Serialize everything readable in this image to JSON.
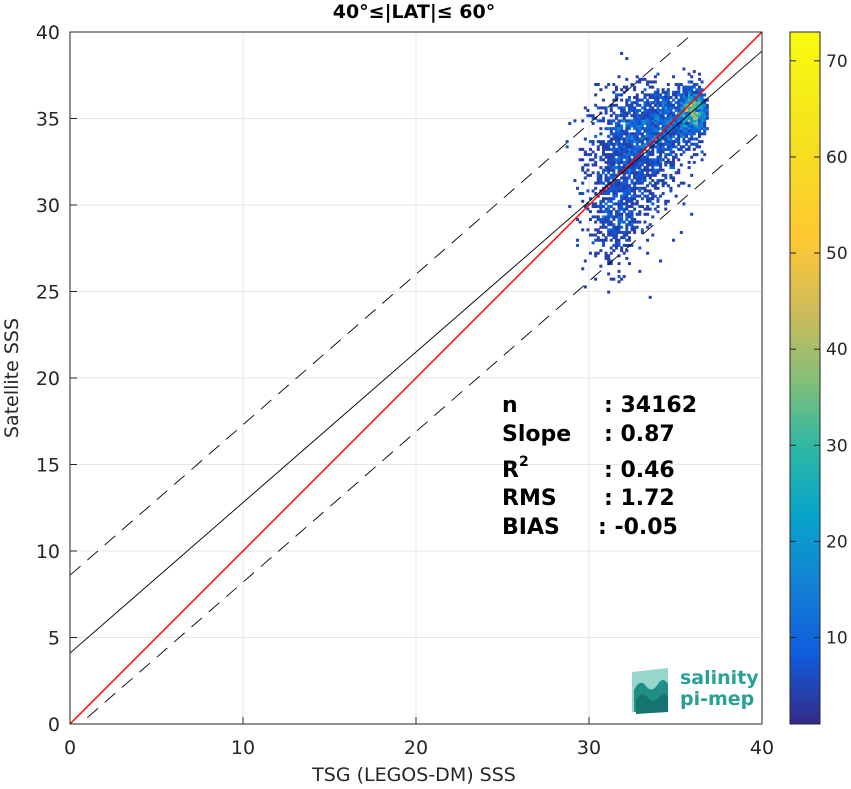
{
  "chart_data": {
    "type": "heatmap",
    "title": "40°≤|LAT|≤ 60°",
    "xlabel": "TSG (LEGOS-DM) SSS",
    "ylabel": "Satellite SSS",
    "xlim": [
      0,
      40
    ],
    "ylim": [
      0,
      40
    ],
    "xticks": [
      "0",
      "10",
      "20",
      "30",
      "40"
    ],
    "yticks": [
      "0",
      "5",
      "10",
      "15",
      "20",
      "25",
      "30",
      "35",
      "40"
    ],
    "grid": true,
    "colorbar": {
      "range": [
        1,
        73
      ],
      "ticks": [
        "10",
        "20",
        "30",
        "40",
        "50",
        "60",
        "70"
      ],
      "colormap": "parula"
    },
    "lines": [
      {
        "name": "1:1",
        "style": "solid",
        "color": "#ff0000",
        "intercept": 0,
        "slope": 1
      },
      {
        "name": "fit",
        "style": "solid",
        "color": "#000000",
        "intercept": 4.1,
        "slope": 0.87
      },
      {
        "name": "fit-upper",
        "style": "dashed",
        "color": "#000000",
        "intercept": 8.6,
        "slope": 0.87
      },
      {
        "name": "fit-lower",
        "style": "dashed",
        "color": "#000000",
        "intercept": -0.5,
        "slope": 0.87
      }
    ],
    "density_clusters": [
      {
        "x_center": 32.5,
        "y_center": 33.0,
        "x_spread": 1.6,
        "y_spread": 2.2,
        "level": 22
      },
      {
        "x_center": 34.5,
        "y_center": 34.8,
        "x_spread": 1.5,
        "y_spread": 1.3,
        "level": 18
      },
      {
        "x_center": 36.0,
        "y_center": 35.5,
        "x_spread": 0.5,
        "y_spread": 0.8,
        "level": 14
      },
      {
        "x_center": 31.5,
        "y_center": 29.5,
        "x_spread": 1.0,
        "y_spread": 2.0,
        "level": 8
      }
    ],
    "stats": [
      {
        "label": "n",
        "value": ": 34162"
      },
      {
        "label": "Slope",
        "value": ": 0.87"
      },
      {
        "label": "R",
        "sup": "2",
        "value": ": 0.46"
      },
      {
        "label": "RMS",
        "value": ": 1.72"
      },
      {
        "label": "BIAS",
        "value": ": -0.05"
      }
    ]
  },
  "logo": {
    "line1": "salinity",
    "line2": "pi-mep"
  },
  "colors": {
    "red_line": "#ff0000",
    "logo_teal": "#2aa198"
  }
}
